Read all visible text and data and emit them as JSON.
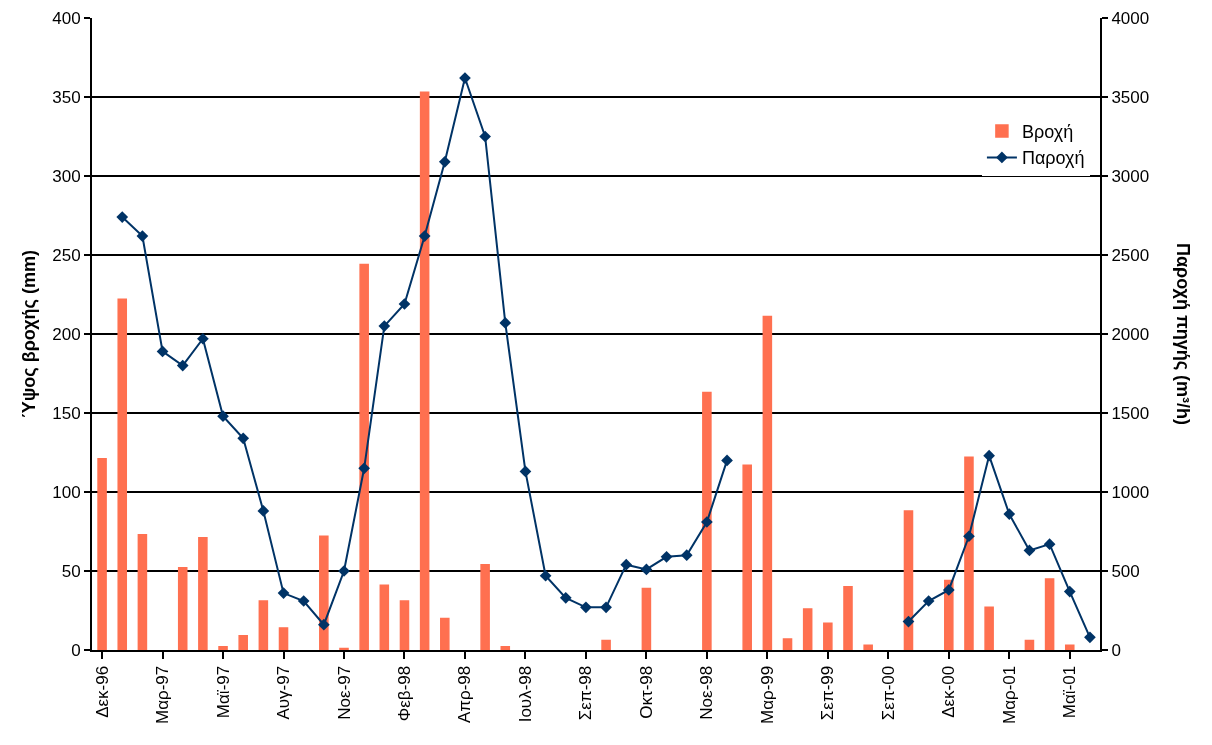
{
  "chart_data": {
    "type": "bar",
    "ylabel": "Ύψος βροχής (mm)",
    "y2label": "Παροχή πηγής (m³/h)",
    "categories": [
      "Δεκ-96",
      null,
      null,
      "Μαρ-97",
      null,
      null,
      "Μαϊ-97",
      null,
      null,
      "Αυγ-97",
      null,
      null,
      "Νοε-97",
      null,
      null,
      "Φεβ-98",
      null,
      null,
      "Απρ-98",
      null,
      null,
      "Ιουλ-98",
      null,
      null,
      "Σεπ-98",
      null,
      null,
      "Οκτ-98",
      null,
      null,
      "Νοε-98",
      null,
      null,
      "Μαρ-99",
      null,
      null,
      "Σεπ-99",
      null,
      null,
      "Σεπ-00",
      null,
      null,
      "Δεκ-00",
      null,
      null,
      "Μαρ-01",
      null,
      null,
      "Μαϊ-01",
      null
    ],
    "series": [
      {
        "name": "Βροχή",
        "color": "#ff7050",
        "values": [
          121,
          222,
          73,
          null,
          52,
          71,
          2,
          9,
          31,
          14,
          null,
          72,
          1,
          244,
          41,
          31,
          353,
          20,
          null,
          54,
          2,
          null,
          null,
          null,
          null,
          6,
          null,
          39,
          null,
          null,
          163,
          null,
          117,
          211,
          7,
          26,
          17,
          40,
          3,
          null,
          88,
          null,
          44,
          122,
          27,
          null,
          6,
          45,
          3,
          null
        ]
      },
      {
        "name": "Παροχή",
        "type": "line",
        "axis": "y2",
        "color": "#003366",
        "marker": "diamond",
        "values": [
          null,
          2740,
          2620,
          1890,
          1800,
          1970,
          1480,
          1340,
          880,
          360,
          310,
          160,
          500,
          1150,
          2050,
          2190,
          2620,
          3090,
          3620,
          3250,
          2070,
          1130,
          470,
          330,
          270,
          270,
          540,
          510,
          590,
          600,
          810,
          1200,
          null,
          null,
          null,
          null,
          null,
          null,
          null,
          null,
          180,
          310,
          380,
          720,
          1230,
          860,
          630,
          670,
          370,
          80
        ]
      }
    ],
    "ylim": [
      0,
      400
    ],
    "yticks": [
      0,
      50,
      100,
      150,
      200,
      250,
      300,
      350,
      400
    ],
    "y2lim": [
      0,
      4000
    ],
    "y2ticks": [
      0,
      500,
      1000,
      1500,
      2000,
      2500,
      3000,
      3500,
      4000
    ],
    "grid": "y",
    "legend": "top right"
  }
}
